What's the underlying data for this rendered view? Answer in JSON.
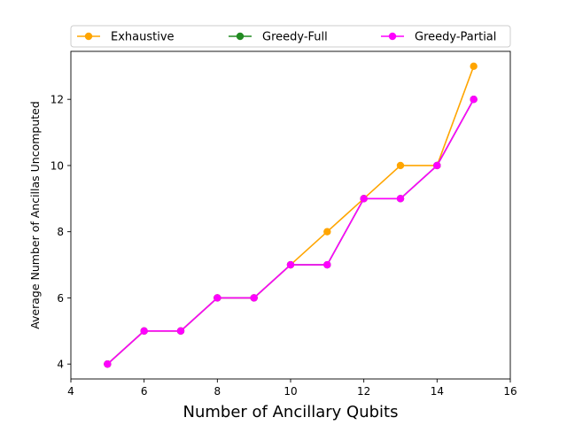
{
  "chart_data": {
    "type": "line",
    "xlabel": "Number of Ancillary Qubits",
    "ylabel": "Average Number of Ancillas Uncomputed",
    "xlim": [
      4,
      16
    ],
    "ylim": [
      3.55,
      13.45
    ],
    "xticks": [
      4,
      6,
      8,
      10,
      12,
      14,
      16
    ],
    "yticks": [
      4,
      6,
      8,
      10,
      12
    ],
    "grid": false,
    "legend_position": "top",
    "x": [
      5,
      6,
      7,
      8,
      9,
      10,
      11,
      12,
      13,
      14,
      15
    ],
    "series": [
      {
        "name": "Exhaustive",
        "color": "#ffa500",
        "values": [
          4,
          5,
          5,
          6,
          6,
          7,
          8,
          9,
          10,
          10,
          13
        ]
      },
      {
        "name": "Greedy-Full",
        "color": "#228b22",
        "values": [
          4,
          5,
          5,
          6,
          6,
          7,
          7,
          9,
          9,
          10,
          12
        ]
      },
      {
        "name": "Greedy-Partial",
        "color": "#ff00ff",
        "values": [
          4,
          5,
          5,
          6,
          6,
          7,
          7,
          9,
          9,
          10,
          12
        ]
      }
    ]
  }
}
